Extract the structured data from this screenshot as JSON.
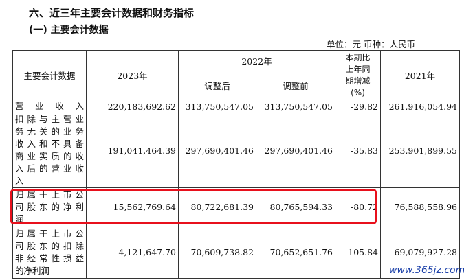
{
  "section_title": "六、近三年主要会计数据和财务指标",
  "subsection_title": "(一) 主要会计数据",
  "unit_line": "单位：元  币种：人民币",
  "header": {
    "item": "主要会计数据",
    "y2023": "2023年",
    "y2022": "2022年",
    "adjusted_after": "调整后",
    "adjusted_before": "调整前",
    "change_lines": [
      "本期比",
      "上年同",
      "期增减",
      "(%)"
    ],
    "y2021": "2021年"
  },
  "rows": [
    {
      "label_lines": [
        "营业收入"
      ],
      "y2023": "220,183,692.62",
      "y2022_after": "313,750,547.05",
      "y2022_before": "313,750,547.05",
      "change": "-29.82",
      "y2021": "261,916,054.94"
    },
    {
      "label_lines": [
        "扣除与主营业",
        "务无关的业务",
        "收入和不具备",
        "商业实质的收",
        "入后的营业收",
        "入"
      ],
      "y2023": "191,041,464.39",
      "y2022_after": "297,690,401.46",
      "y2022_before": "297,690,401.46",
      "change": "-35.83",
      "y2021": "253,901,899.55"
    },
    {
      "label_lines": [
        "归属于上市公",
        "司股东的净利",
        "润"
      ],
      "y2023": "15,562,769.64",
      "y2022_after": "80,722,681.39",
      "y2022_before": "80,765,594.33",
      "change": "-80.72",
      "y2021": "76,588,558.96"
    },
    {
      "label_lines": [
        "归属于上市公",
        "司股东的扣除",
        "非经常性损益",
        "的净利润"
      ],
      "y2023": "-4,121,647.70",
      "y2022_after": "70,609,738.82",
      "y2022_before": "70,652,651.76",
      "change": "-105.84",
      "y2021": "69,079,927.28"
    }
  ],
  "highlight_color": "#e8101c",
  "watermark": "www.365jz.com"
}
